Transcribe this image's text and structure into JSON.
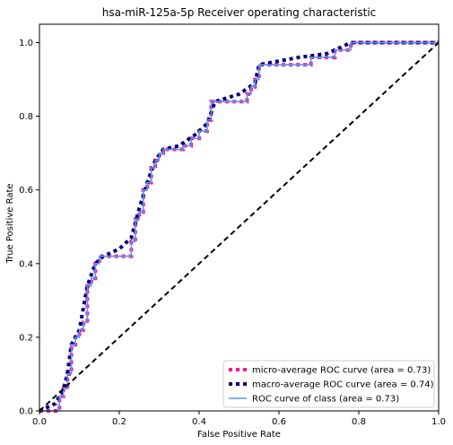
{
  "chart_data": {
    "type": "line",
    "title": "hsa-miR-125a-5p Receiver operating characteristic",
    "xlabel": "False Positive Rate",
    "ylabel": "True Positive Rate",
    "xlim": [
      0.0,
      1.0
    ],
    "ylim": [
      0.0,
      1.05
    ],
    "xticks": [
      0.0,
      0.2,
      0.4,
      0.6,
      0.8,
      1.0
    ],
    "yticks": [
      0.0,
      0.2,
      0.4,
      0.6,
      0.8,
      1.0
    ],
    "xtick_labels": [
      "0.0",
      "0.2",
      "0.4",
      "0.6",
      "0.8",
      "1.0"
    ],
    "ytick_labels": [
      "0.0",
      "0.2",
      "0.4",
      "0.6",
      "0.8",
      "1.0"
    ],
    "grid": false,
    "legend_position": "lower-right",
    "series": [
      {
        "name": "micro-average ROC curve (area = 0.73)",
        "color": "#ff1493",
        "style": "dotted",
        "points": [
          [
            0,
            0
          ],
          [
            0.05,
            0
          ],
          [
            0.05,
            0.04
          ],
          [
            0.06,
            0.04
          ],
          [
            0.06,
            0.06
          ],
          [
            0.07,
            0.06
          ],
          [
            0.07,
            0.1
          ],
          [
            0.08,
            0.1
          ],
          [
            0.08,
            0.18
          ],
          [
            0.09,
            0.18
          ],
          [
            0.09,
            0.2
          ],
          [
            0.1,
            0.2
          ],
          [
            0.1,
            0.22
          ],
          [
            0.11,
            0.22
          ],
          [
            0.11,
            0.24
          ],
          [
            0.12,
            0.24
          ],
          [
            0.12,
            0.34
          ],
          [
            0.13,
            0.34
          ],
          [
            0.13,
            0.36
          ],
          [
            0.14,
            0.36
          ],
          [
            0.14,
            0.4
          ],
          [
            0.15,
            0.4
          ],
          [
            0.15,
            0.42
          ],
          [
            0.23,
            0.42
          ],
          [
            0.23,
            0.46
          ],
          [
            0.24,
            0.46
          ],
          [
            0.24,
            0.52
          ],
          [
            0.25,
            0.52
          ],
          [
            0.25,
            0.54
          ],
          [
            0.26,
            0.54
          ],
          [
            0.26,
            0.6
          ],
          [
            0.27,
            0.6
          ],
          [
            0.27,
            0.62
          ],
          [
            0.28,
            0.62
          ],
          [
            0.28,
            0.66
          ],
          [
            0.29,
            0.66
          ],
          [
            0.29,
            0.68
          ],
          [
            0.3,
            0.68
          ],
          [
            0.3,
            0.7
          ],
          [
            0.31,
            0.7
          ],
          [
            0.31,
            0.71
          ],
          [
            0.36,
            0.71
          ],
          [
            0.36,
            0.72
          ],
          [
            0.38,
            0.72
          ],
          [
            0.38,
            0.74
          ],
          [
            0.4,
            0.74
          ],
          [
            0.4,
            0.76
          ],
          [
            0.42,
            0.76
          ],
          [
            0.42,
            0.79
          ],
          [
            0.43,
            0.79
          ],
          [
            0.43,
            0.84
          ],
          [
            0.52,
            0.84
          ],
          [
            0.52,
            0.86
          ],
          [
            0.53,
            0.86
          ],
          [
            0.53,
            0.88
          ],
          [
            0.54,
            0.88
          ],
          [
            0.54,
            0.9
          ],
          [
            0.55,
            0.9
          ],
          [
            0.55,
            0.94
          ],
          [
            0.68,
            0.94
          ],
          [
            0.68,
            0.96
          ],
          [
            0.74,
            0.96
          ],
          [
            0.74,
            0.98
          ],
          [
            0.78,
            0.98
          ],
          [
            0.78,
            1.0
          ],
          [
            1.0,
            1.0
          ]
        ]
      },
      {
        "name": "macro-average ROC curve (area = 0.74)",
        "color": "#000080",
        "style": "dotted",
        "points": [
          [
            0,
            0
          ],
          [
            0.04,
            0.02
          ],
          [
            0.06,
            0.06
          ],
          [
            0.07,
            0.1
          ],
          [
            0.08,
            0.18
          ],
          [
            0.1,
            0.22
          ],
          [
            0.12,
            0.34
          ],
          [
            0.14,
            0.4
          ],
          [
            0.16,
            0.42
          ],
          [
            0.2,
            0.44
          ],
          [
            0.23,
            0.47
          ],
          [
            0.25,
            0.55
          ],
          [
            0.27,
            0.62
          ],
          [
            0.29,
            0.68
          ],
          [
            0.31,
            0.71
          ],
          [
            0.35,
            0.72
          ],
          [
            0.39,
            0.75
          ],
          [
            0.42,
            0.78
          ],
          [
            0.44,
            0.84
          ],
          [
            0.5,
            0.86
          ],
          [
            0.54,
            0.89
          ],
          [
            0.55,
            0.94
          ],
          [
            0.65,
            0.96
          ],
          [
            0.72,
            0.97
          ],
          [
            0.78,
            1.0
          ],
          [
            1.0,
            1.0
          ]
        ]
      },
      {
        "name": "ROC curve of class (area = 0.73)",
        "color": "#5599ee",
        "style": "solid",
        "points": [
          [
            0,
            0
          ],
          [
            0.05,
            0
          ],
          [
            0.05,
            0.04
          ],
          [
            0.06,
            0.04
          ],
          [
            0.06,
            0.06
          ],
          [
            0.07,
            0.06
          ],
          [
            0.07,
            0.1
          ],
          [
            0.08,
            0.1
          ],
          [
            0.08,
            0.18
          ],
          [
            0.09,
            0.18
          ],
          [
            0.09,
            0.2
          ],
          [
            0.1,
            0.2
          ],
          [
            0.1,
            0.22
          ],
          [
            0.11,
            0.22
          ],
          [
            0.11,
            0.24
          ],
          [
            0.12,
            0.24
          ],
          [
            0.12,
            0.34
          ],
          [
            0.13,
            0.34
          ],
          [
            0.13,
            0.36
          ],
          [
            0.14,
            0.36
          ],
          [
            0.14,
            0.4
          ],
          [
            0.15,
            0.4
          ],
          [
            0.15,
            0.42
          ],
          [
            0.23,
            0.42
          ],
          [
            0.23,
            0.46
          ],
          [
            0.24,
            0.46
          ],
          [
            0.24,
            0.52
          ],
          [
            0.25,
            0.52
          ],
          [
            0.25,
            0.54
          ],
          [
            0.26,
            0.54
          ],
          [
            0.26,
            0.6
          ],
          [
            0.27,
            0.6
          ],
          [
            0.27,
            0.62
          ],
          [
            0.28,
            0.62
          ],
          [
            0.28,
            0.66
          ],
          [
            0.29,
            0.66
          ],
          [
            0.29,
            0.68
          ],
          [
            0.3,
            0.68
          ],
          [
            0.3,
            0.7
          ],
          [
            0.31,
            0.7
          ],
          [
            0.31,
            0.71
          ],
          [
            0.36,
            0.71
          ],
          [
            0.36,
            0.72
          ],
          [
            0.38,
            0.72
          ],
          [
            0.38,
            0.74
          ],
          [
            0.4,
            0.74
          ],
          [
            0.4,
            0.76
          ],
          [
            0.42,
            0.76
          ],
          [
            0.42,
            0.79
          ],
          [
            0.43,
            0.79
          ],
          [
            0.43,
            0.84
          ],
          [
            0.52,
            0.84
          ],
          [
            0.52,
            0.86
          ],
          [
            0.53,
            0.86
          ],
          [
            0.53,
            0.88
          ],
          [
            0.54,
            0.88
          ],
          [
            0.54,
            0.9
          ],
          [
            0.55,
            0.9
          ],
          [
            0.55,
            0.94
          ],
          [
            0.68,
            0.94
          ],
          [
            0.68,
            0.96
          ],
          [
            0.74,
            0.96
          ],
          [
            0.74,
            0.98
          ],
          [
            0.78,
            0.98
          ],
          [
            0.78,
            1.0
          ],
          [
            1.0,
            1.0
          ]
        ]
      },
      {
        "name": "",
        "color": "#000000",
        "style": "dashed",
        "points": [
          [
            0,
            0
          ],
          [
            1,
            1
          ]
        ]
      }
    ]
  }
}
